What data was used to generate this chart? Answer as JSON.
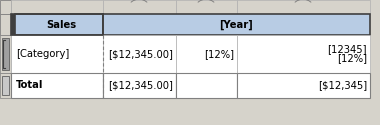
{
  "bg_color": "#d6d3cb",
  "cell_blue": "#b8cce4",
  "cell_white": "#ffffff",
  "border_dark": "#3f3f3f",
  "border_mid": "#808080",
  "border_light": "#b0b0b0",
  "dashed_color": "#7f7f7f",
  "text_dark": "#000000",
  "sales_dark_bg": "#3f3f3f",
  "handle_bg": "#a0a0a0",
  "handle_border": "#606060",
  "title_text": "Sales",
  "year_text": "[Year]",
  "cat_text": "[Category]",
  "val1_text": "[$12,345.00]",
  "val2_text": "[12%]",
  "val3a_text": "[12345]",
  "val3b_text": "[12%]",
  "total_text": "Total",
  "total_val1": "[$12,345.00]",
  "total_val3": "[$12,345]",
  "c0": 0,
  "c1": 11,
  "c2": 103,
  "c3": 176,
  "c4": 237,
  "c5": 370,
  "r0": 0,
  "r1": 14,
  "r2": 35,
  "r3": 73,
  "r4": 98,
  "r5": 125
}
